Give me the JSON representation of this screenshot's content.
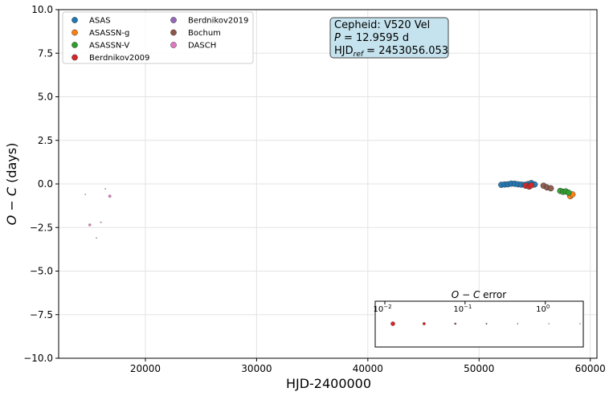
{
  "chart_data": {
    "type": "scatter",
    "xlabel": "HJD-2400000",
    "ylabel": "O − C (days)",
    "ylabel_parts": {
      "o": "O",
      "minus": " − ",
      "c": "C",
      "unit": " (days)"
    },
    "xlim": [
      12200,
      60600
    ],
    "ylim": [
      -10.0,
      10.0
    ],
    "x_ticks": [
      20000,
      30000,
      40000,
      50000,
      60000
    ],
    "x_tick_labels": [
      "20000",
      "30000",
      "40000",
      "50000",
      "60000"
    ],
    "y_ticks": [
      -10.0,
      -7.5,
      -5.0,
      -2.5,
      0.0,
      2.5,
      5.0,
      7.5,
      10.0
    ],
    "y_tick_labels": [
      "−10.0",
      "−7.5",
      "−5.0",
      "−2.5",
      "0.0",
      "2.5",
      "5.0",
      "7.5",
      "10.0"
    ],
    "grid": true,
    "legend_placement": "top-left",
    "info_box": {
      "placement": "top-center",
      "line1": "Cepheid: V520 Vel",
      "line2_var": "P",
      "line2_rest": " = 12.9595 d",
      "line3_main": "HJD",
      "line3_sub": "ref",
      "line3_rest": " = 2453056.053",
      "background": "#c5e3ee"
    },
    "series": [
      {
        "name": "ASAS",
        "color": "#1f77b4",
        "x": [
          52000,
          52300,
          52600,
          52900,
          53200,
          53500,
          53800,
          54100,
          54400,
          54700,
          55000
        ],
        "y": [
          -0.05,
          -0.03,
          -0.02,
          0.02,
          0.01,
          -0.02,
          -0.04,
          -0.05,
          -0.01,
          0.05,
          -0.03
        ],
        "size": 1.0
      },
      {
        "name": "ASASSN-g",
        "color": "#ff7f0e",
        "x": [
          58200,
          58400
        ],
        "y": [
          -0.7,
          -0.6
        ],
        "size": 1.0
      },
      {
        "name": "ASASSN-V",
        "color": "#2ca02c",
        "x": [
          57300,
          57550,
          57800,
          58050
        ],
        "y": [
          -0.4,
          -0.45,
          -0.43,
          -0.5
        ],
        "size": 1.0
      },
      {
        "name": "Berdnikov2009",
        "color": "#d62728",
        "x": [
          54200,
          54500,
          54700
        ],
        "y": [
          -0.1,
          -0.15,
          -0.08
        ],
        "size": 1.0
      },
      {
        "name": "Berdnikov2019",
        "color": "#9467bd",
        "x": [],
        "y": [],
        "size": 1.0
      },
      {
        "name": "Bochum",
        "color": "#8c564b",
        "x": [
          55800,
          56100,
          56450
        ],
        "y": [
          -0.1,
          -0.2,
          -0.25
        ],
        "size": 1.0
      },
      {
        "name": "DASCH",
        "color": "#e377c2",
        "x": [
          14600,
          15000,
          15600,
          16000,
          16400,
          16800
        ],
        "y": [
          -0.6,
          -2.35,
          -3.1,
          -2.2,
          -0.28,
          -0.7
        ],
        "size": [
          0.15,
          0.4,
          0.12,
          0.2,
          0.12,
          0.45
        ]
      }
    ],
    "error_legend": {
      "title_o": "O",
      "title_minus": " − ",
      "title_c": "C",
      "title_rest": " error",
      "ticks": [
        {
          "label": "10",
          "exp": "−2",
          "value": 0.01
        },
        {
          "label": "10",
          "exp": "−1",
          "value": 0.1
        },
        {
          "label": "10",
          "exp": "0",
          "value": 1
        }
      ],
      "samples": [
        {
          "value": 0.01,
          "size": 1.0
        },
        {
          "value": 0.0245,
          "size": 0.65
        },
        {
          "value": 0.06,
          "size": 0.45
        },
        {
          "value": 0.1468,
          "size": 0.3
        },
        {
          "value": 0.3594,
          "size": 0.22
        },
        {
          "value": 0.8799,
          "size": 0.18
        },
        {
          "value": 2.154,
          "size": 0.15
        }
      ]
    }
  }
}
